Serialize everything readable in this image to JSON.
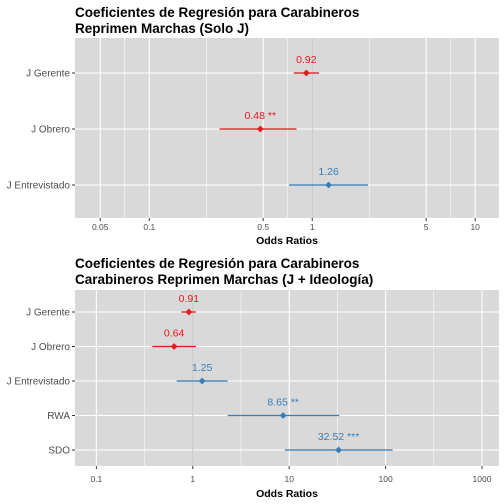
{
  "chart_data": [
    {
      "type": "scatter",
      "title": "Coeficientes de Regresión para Carabineros",
      "subtitle": "Reprimen Marchas (Solo J)",
      "xlabel": "Odds Ratios",
      "ylabel": "",
      "x_scale": "log",
      "xlim": [
        0.035,
        14
      ],
      "xticks": [
        "0.05",
        "0.1",
        "0.5",
        "1",
        "5",
        "10"
      ],
      "reference_line": 1,
      "grid": true,
      "colors": {
        "negative": "#e41a1c",
        "positive": "#377eb8",
        "panel": "#d9d9d9",
        "grid": "#ffffff",
        "reference": "#bfbfbf"
      },
      "rows": [
        {
          "term": "J Gerente",
          "estimate": 0.92,
          "low": 0.77,
          "high": 1.1,
          "label": "0.92",
          "color": "#e41a1c"
        },
        {
          "term": "J Obrero",
          "estimate": 0.48,
          "low": 0.27,
          "high": 0.8,
          "label": "0.48 **",
          "color": "#e41a1c"
        },
        {
          "term": "J Entrevistado",
          "estimate": 1.26,
          "low": 0.72,
          "high": 2.2,
          "label": "1.26",
          "color": "#377eb8"
        }
      ]
    },
    {
      "type": "scatter",
      "title": "Coeficientes de Regresión para Carabineros",
      "subtitle": "Carabineros Reprimen Marchas (J + Ideología)",
      "xlabel": "Odds Ratios",
      "ylabel": "",
      "x_scale": "log",
      "xlim": [
        0.06,
        1500
      ],
      "xticks": [
        "0.1",
        "1",
        "10",
        "100",
        "1000"
      ],
      "reference_line": 1,
      "grid": true,
      "colors": {
        "negative": "#e41a1c",
        "positive": "#377eb8",
        "panel": "#d9d9d9",
        "grid": "#ffffff",
        "reference": "#bfbfbf"
      },
      "rows": [
        {
          "term": "J Gerente",
          "estimate": 0.91,
          "low": 0.76,
          "high": 1.08,
          "label": "0.91",
          "color": "#e41a1c"
        },
        {
          "term": "J Obrero",
          "estimate": 0.64,
          "low": 0.38,
          "high": 1.08,
          "label": "0.64",
          "color": "#e41a1c"
        },
        {
          "term": "J Entrevistado",
          "estimate": 1.25,
          "low": 0.68,
          "high": 2.3,
          "label": "1.25",
          "color": "#377eb8"
        },
        {
          "term": "RWA",
          "estimate": 8.65,
          "low": 2.3,
          "high": 33,
          "label": "8.65 **",
          "color": "#377eb8"
        },
        {
          "term": "SDO",
          "estimate": 32.52,
          "low": 9,
          "high": 118,
          "label": "32.52 ***",
          "color": "#377eb8"
        }
      ]
    }
  ]
}
